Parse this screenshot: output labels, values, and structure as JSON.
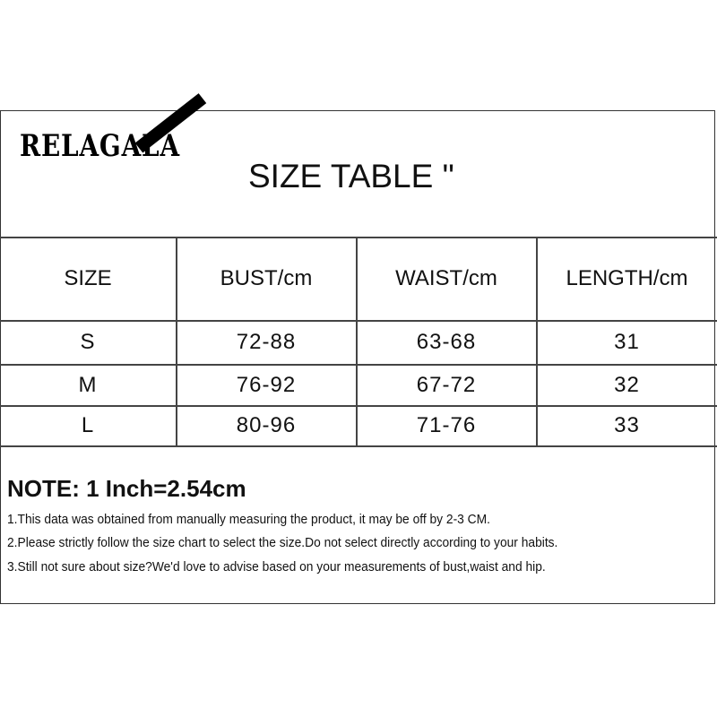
{
  "brand": {
    "logo_text": "RELAGALA"
  },
  "title": "SIZE TABLE \"",
  "table": {
    "headers": [
      "SIZE",
      "BUST/cm",
      "WAIST/cm",
      "LENGTH/cm"
    ],
    "rows": [
      [
        "S",
        "72-88",
        "63-68",
        "31"
      ],
      [
        "M",
        "76-92",
        "67-72",
        "32"
      ],
      [
        "L",
        "80-96",
        "71-76",
        "33"
      ]
    ]
  },
  "notes": {
    "title": "NOTE: 1 Inch=2.54cm",
    "items": [
      "1.This data was obtained from manually measuring the product, it may be off by 2-3 CM.",
      "2.Please strictly follow the size chart to select the size.Do not select directly according to your habits.",
      "3.Still not sure about size?We'd love to advise based on your measurements of bust,waist and hip."
    ]
  }
}
